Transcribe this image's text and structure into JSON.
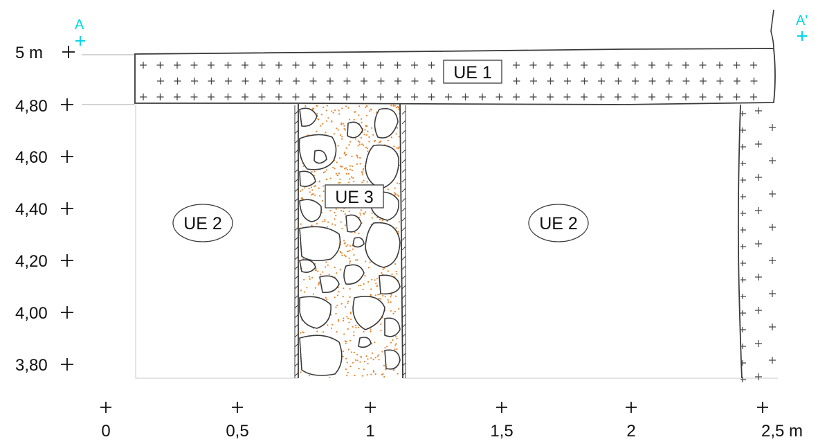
{
  "section": {
    "markers": {
      "start": "A",
      "end": "A'"
    },
    "accent_colors": {
      "marker": "#00d8e6",
      "ue3_fill": "#e8852a",
      "outline": "#3a3a3a"
    }
  },
  "axes": {
    "y_ticks": [
      "5 m",
      "4,80",
      "4,60",
      "4,40",
      "4,20",
      "4,00",
      "3,80"
    ],
    "x_ticks": [
      "0",
      "0,5",
      "1",
      "1,5",
      "2",
      "2,5 m"
    ]
  },
  "units": {
    "ue1": "UE 1",
    "ue2_left": "UE 2",
    "ue2_right": "UE 2",
    "ue3": "UE 3"
  }
}
